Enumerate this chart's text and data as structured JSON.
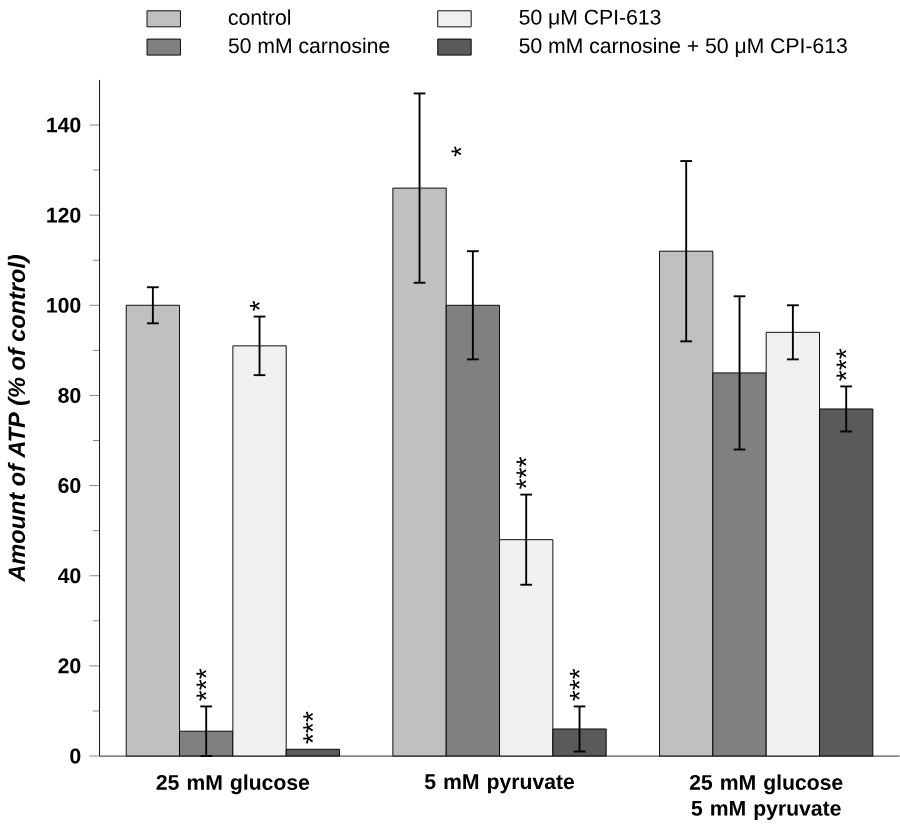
{
  "chart_data": {
    "type": "bar",
    "ylabel": "Amount of ATP (% of control)",
    "categories": [
      "25 mM glucose",
      "5 mM pyruvate",
      "25 mM glucose 5 mM pyruvate"
    ],
    "series": [
      {
        "name": "control",
        "color": "#c0c0c0",
        "values": [
          100,
          126,
          112
        ],
        "errors": [
          4,
          21,
          20
        ],
        "value_labels": [
          null,
          "*",
          null
        ]
      },
      {
        "name": "50 mM carnosine",
        "color": "#808080",
        "values": [
          5.5,
          100,
          85
        ],
        "errors": [
          5.5,
          12,
          17
        ],
        "value_labels": [
          "***",
          null,
          null
        ]
      },
      {
        "name": "50 μM CPI-613",
        "color": "#f0f0f0",
        "values": [
          91,
          48,
          94
        ],
        "errors": [
          6.5,
          10,
          6
        ],
        "value_labels": [
          "*",
          "***",
          null
        ]
      },
      {
        "name": "50 mM carnosine + 50 μM CPI-613",
        "color": "#5a5a5a",
        "values": [
          1.5,
          6,
          77
        ],
        "errors": [
          null,
          5,
          5
        ],
        "value_labels": [
          "***",
          "***",
          "***"
        ]
      }
    ],
    "ylim": [
      0,
      150
    ],
    "yticks": [
      0,
      20,
      40,
      60,
      80,
      100,
      120,
      140
    ],
    "legend": "top"
  }
}
